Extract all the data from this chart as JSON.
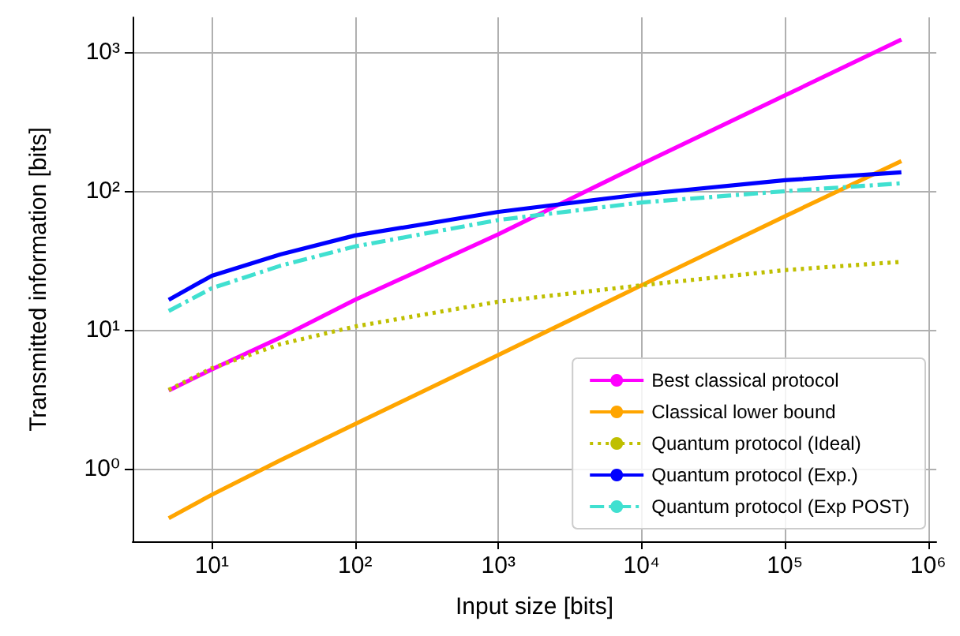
{
  "chart_data": {
    "type": "line",
    "xlabel": "Input size [bits]",
    "ylabel": "Transmitted information [bits]",
    "log": "xy",
    "grid": true,
    "legend": "bottom right",
    "marker": "none",
    "xlim": [
      2.8,
      1140000
    ],
    "ylim": [
      0.3,
      1790
    ],
    "xticks": [
      {
        "value": 10,
        "label": "10¹"
      },
      {
        "value": 100,
        "label": "10²"
      },
      {
        "value": 1000,
        "label": "10³"
      },
      {
        "value": 10000,
        "label": "10⁴"
      },
      {
        "value": 100000,
        "label": "10⁵"
      },
      {
        "value": 1000000,
        "label": "10⁶"
      }
    ],
    "yticks": [
      {
        "value": 1,
        "label": "10⁰"
      },
      {
        "value": 10,
        "label": "10¹"
      },
      {
        "value": 100,
        "label": "10²"
      },
      {
        "value": 1000,
        "label": "10³"
      }
    ],
    "x": [
      5,
      10,
      30,
      100,
      1000,
      10000,
      100000,
      650000
    ],
    "series": [
      {
        "name": "Best classical protocol",
        "color": "#ff00ff",
        "line_style": "solid",
        "values": [
          3.66,
          5.2,
          8.8,
          16.5,
          49,
          157,
          490,
          1240
        ]
      },
      {
        "name": "Classical lower bound",
        "color": "#ffa500",
        "line_style": "solid",
        "values": [
          0.44,
          0.65,
          1.15,
          2.1,
          6.6,
          21,
          66,
          165
        ]
      },
      {
        "name": "Quantum protocol (Ideal)",
        "color": "#bfbf00",
        "line_style": "dotted",
        "values": [
          3.7,
          5.3,
          7.9,
          10.6,
          16,
          21,
          27,
          31
        ]
      },
      {
        "name": "Quantum protocol (Exp.)",
        "color": "#0000ff",
        "line_style": "solid",
        "values": [
          16.5,
          24.6,
          35,
          48,
          71,
          95,
          120,
          137
        ]
      },
      {
        "name": "Quantum protocol (Exp POST)",
        "color": "#40e0d0",
        "line_style": "dashdot",
        "values": [
          13.7,
          20,
          29,
          40,
          62,
          83,
          100,
          114
        ]
      }
    ]
  }
}
